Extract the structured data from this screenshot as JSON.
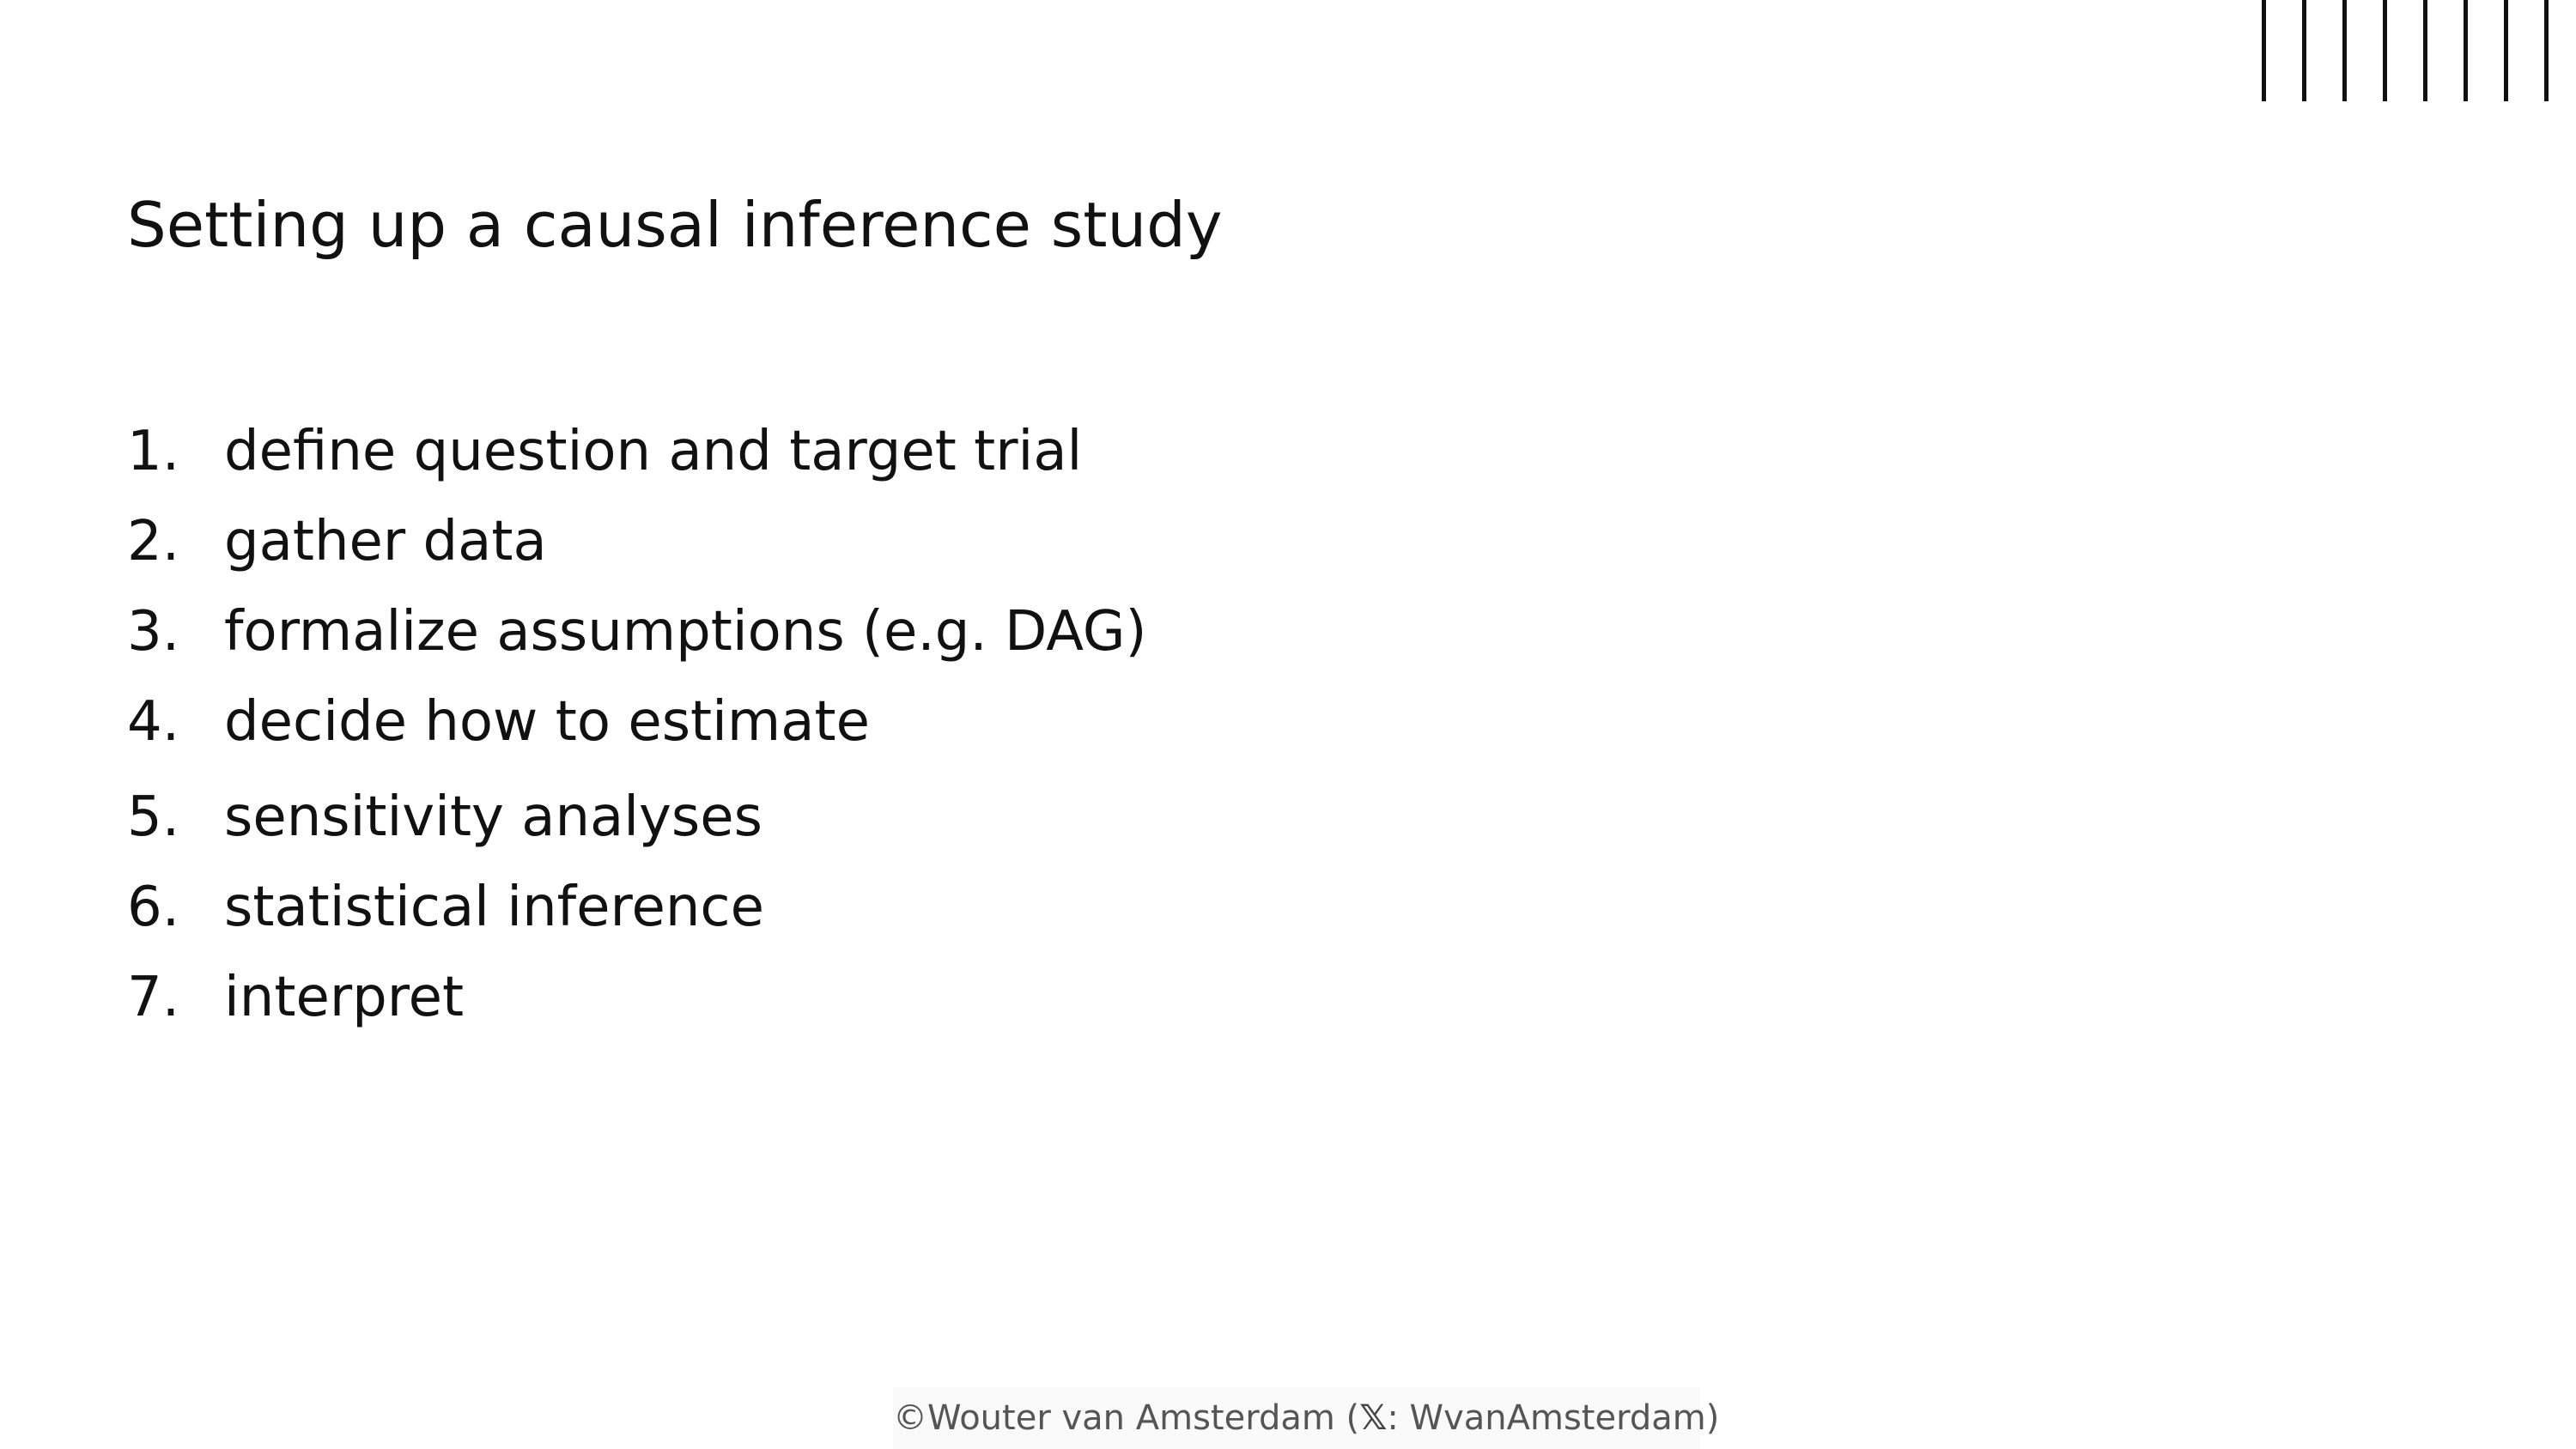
{
  "slide": {
    "title": "Setting up a causal inference study",
    "steps": [
      {
        "number": "1.",
        "text": "define question and target trial"
      },
      {
        "number": "2.",
        "text": "gather data"
      },
      {
        "number": "3.",
        "text": "formalize assumptions (e.g. DAG)"
      },
      {
        "number": "4.",
        "text": "decide how to estimate"
      },
      {
        "number": "5.",
        "text": "sensitivity analyses"
      },
      {
        "number": "6.",
        "text": "statistical inference"
      },
      {
        "number": "7.",
        "text": "interpret"
      }
    ],
    "footer": {
      "prefix": "©Wouter van Amsterdam (",
      "icon": "x-logo-icon",
      "icon_glyph": "𝕏",
      "suffix": ": WvanAmsterdam)"
    },
    "decoration": {
      "icon": "vertical-lines-icon",
      "line_color": "#111111"
    }
  }
}
